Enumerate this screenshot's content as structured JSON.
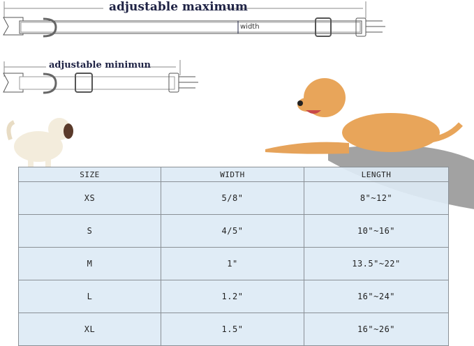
{
  "diagram": {
    "max_label": "adjustable maximum",
    "min_label": "adjustable minimun",
    "width_label": "width"
  },
  "table": {
    "headers": [
      "SIZE",
      "WIDTH",
      "LENGTH"
    ],
    "rows": [
      [
        "XS",
        "5/8\"",
        "8\"~12\""
      ],
      [
        "S",
        "4/5\"",
        "10\"~16\""
      ],
      [
        "M",
        "1\"",
        "13.5\"~22\""
      ],
      [
        "L",
        "1.2\"",
        "16\"~24\""
      ],
      [
        "XL",
        "1.5\"",
        "16\"~26\""
      ]
    ]
  },
  "colors": {
    "table_fill": "#ddeaf5",
    "title": "#1f2345",
    "dog": "#e8a55a"
  }
}
